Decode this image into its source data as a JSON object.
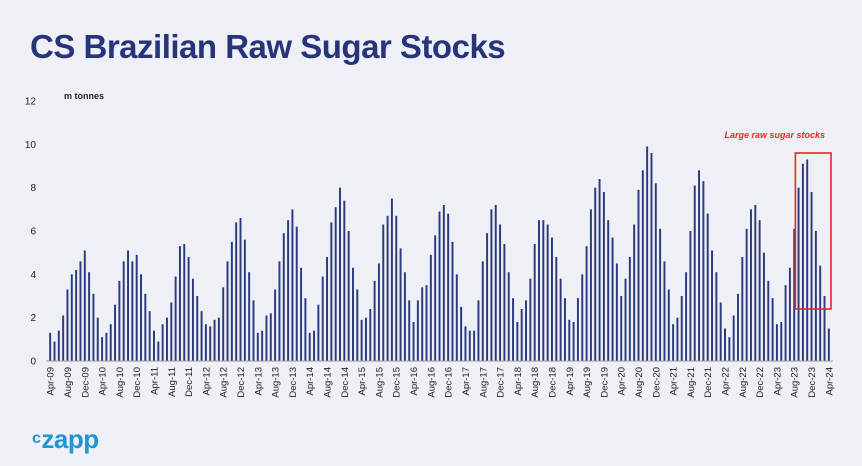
{
  "page": {
    "title": "CS Brazilian Raw Sugar Stocks"
  },
  "logo": {
    "mark": "c",
    "text": "zapp"
  },
  "colors": {
    "bar": "#2b3a7e",
    "annotation": "#e8262a",
    "background": "#eef0f6",
    "title": "#27347a",
    "logo": "#2196d3"
  },
  "chart_data": {
    "type": "bar",
    "unit_label": "m tonnes",
    "ylim": [
      0,
      12
    ],
    "yticks": [
      0,
      2,
      4,
      6,
      8,
      10,
      12
    ],
    "grid": false,
    "tick_labels": [
      "Apr-09",
      "Aug-09",
      "Dec-09",
      "Apr-10",
      "Aug-10",
      "Dec-10",
      "Apr-11",
      "Aug-11",
      "Dec-11",
      "Apr-12",
      "Aug-12",
      "Dec-12",
      "Apr-13",
      "Aug-13",
      "Dec-13",
      "Apr-14",
      "Aug-14",
      "Dec-14",
      "Apr-15",
      "Aug-15",
      "Dec-15",
      "Apr-16",
      "Aug-16",
      "Dec-16",
      "Apr-17",
      "Aug-17",
      "Dec-17",
      "Apr-18",
      "Aug-18",
      "Dec-18",
      "Apr-19",
      "Aug-19",
      "Dec-19",
      "Apr-20",
      "Aug-20",
      "Dec-20",
      "Apr-21",
      "Aug-21",
      "Dec-21",
      "Apr-22",
      "Aug-22",
      "Dec-22",
      "Apr-23",
      "Aug-23",
      "Dec-23",
      "Apr-24"
    ],
    "values": [
      1.3,
      0.9,
      1.4,
      2.1,
      3.3,
      4.0,
      4.2,
      4.6,
      5.1,
      4.1,
      3.1,
      2.0,
      1.1,
      1.3,
      1.7,
      2.6,
      3.7,
      4.6,
      5.1,
      4.6,
      4.9,
      4.0,
      3.1,
      2.3,
      1.4,
      0.9,
      1.7,
      2.0,
      2.7,
      3.9,
      5.3,
      5.4,
      4.8,
      3.8,
      3.0,
      2.3,
      1.7,
      1.6,
      1.9,
      2.0,
      3.4,
      4.6,
      5.5,
      6.4,
      6.6,
      5.6,
      4.1,
      2.8,
      1.3,
      1.4,
      2.1,
      2.2,
      3.3,
      4.6,
      5.9,
      6.5,
      7.0,
      6.2,
      4.3,
      2.9,
      1.3,
      1.4,
      2.6,
      3.9,
      4.8,
      6.4,
      7.1,
      8.0,
      7.4,
      6.0,
      4.3,
      3.3,
      1.9,
      2.0,
      2.4,
      3.7,
      4.5,
      6.3,
      6.7,
      7.5,
      6.7,
      5.2,
      4.1,
      2.8,
      1.8,
      2.8,
      3.4,
      3.5,
      4.9,
      5.8,
      6.9,
      7.2,
      6.8,
      5.5,
      4.0,
      2.5,
      1.6,
      1.4,
      1.4,
      2.8,
      4.6,
      5.9,
      7.0,
      7.2,
      6.3,
      5.4,
      4.1,
      2.9,
      1.8,
      2.4,
      2.8,
      3.8,
      5.4,
      6.5,
      6.5,
      6.3,
      5.7,
      4.8,
      3.8,
      2.9,
      1.9,
      1.8,
      2.9,
      4.0,
      5.3,
      7.0,
      8.0,
      8.4,
      7.8,
      6.5,
      5.7,
      4.5,
      3.0,
      3.8,
      4.8,
      6.3,
      7.9,
      8.8,
      9.9,
      9.6,
      8.2,
      6.1,
      4.6,
      3.3,
      1.7,
      2.0,
      3.0,
      4.1,
      6.0,
      8.1,
      8.8,
      8.3,
      6.8,
      5.1,
      4.1,
      2.7,
      1.5,
      1.1,
      2.1,
      3.1,
      4.8,
      6.1,
      7.0,
      7.2,
      6.5,
      5.0,
      3.7,
      2.9,
      1.7,
      1.8,
      3.5,
      4.3,
      6.1,
      8.0,
      9.1,
      9.3,
      7.8,
      6.0,
      4.4,
      3.0,
      1.5
    ],
    "annotation": {
      "text": "Large raw sugar stocks",
      "from_index": 173,
      "to_index": 180
    }
  }
}
